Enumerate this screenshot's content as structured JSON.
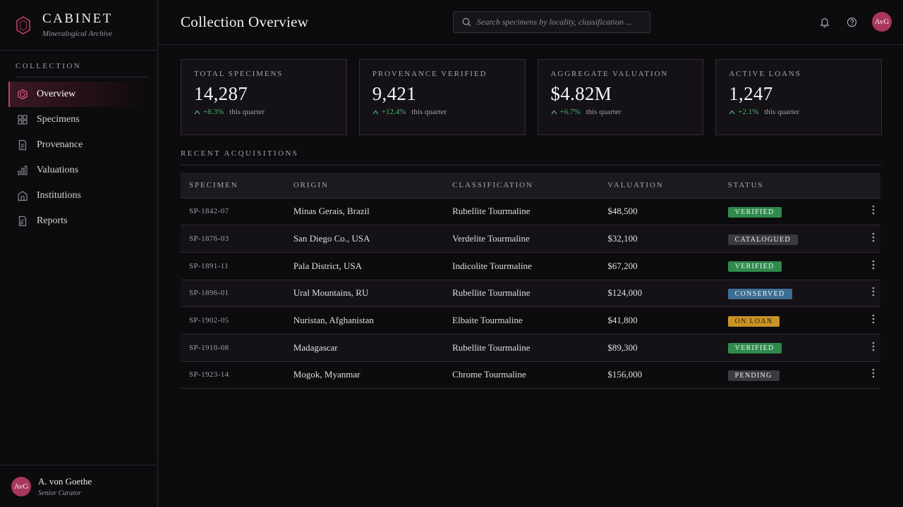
{
  "brand": {
    "title": "CABINET",
    "subtitle": "Mineralogical Archive"
  },
  "sidebar": {
    "section": "COLLECTION",
    "items": [
      {
        "label": "Overview",
        "icon": "hexagon-icon"
      },
      {
        "label": "Specimens",
        "icon": "grid-icon"
      },
      {
        "label": "Provenance",
        "icon": "document-icon"
      },
      {
        "label": "Valuations",
        "icon": "bar-chart-icon"
      },
      {
        "label": "Institutions",
        "icon": "building-icon"
      },
      {
        "label": "Reports",
        "icon": "report-icon"
      }
    ]
  },
  "user": {
    "initials": "AvG",
    "name": "A. von Goethe",
    "role": "Senior Curator"
  },
  "header": {
    "title": "Collection Overview",
    "search_placeholder": "Search specimens by locality, classification ...",
    "avatar_initials": "AvG"
  },
  "stats": [
    {
      "label": "TOTAL SPECIMENS",
      "value": "14,287",
      "delta": "+8.3%",
      "note": "this quarter"
    },
    {
      "label": "PROVENANCE VERIFIED",
      "value": "9,421",
      "delta": "+12.4%",
      "note": "this quarter"
    },
    {
      "label": "AGGREGATE VALUATION",
      "value": "$4.82M",
      "delta": "+6.7%",
      "note": "this quarter"
    },
    {
      "label": "ACTIVE LOANS",
      "value": "1,247",
      "delta": "+2.1%",
      "note": "this quarter"
    }
  ],
  "recent": {
    "title": "RECENT ACQUISITIONS",
    "columns": [
      "SPECIMEN",
      "ORIGIN",
      "CLASSIFICATION",
      "VALUATION",
      "STATUS"
    ],
    "rows": [
      {
        "id": "SP-1842-07",
        "origin": "Minas Gerais, Brazil",
        "class": "Rubellite Tourmaline",
        "value": "$48,500",
        "status": "VERIFIED"
      },
      {
        "id": "SP-1876-03",
        "origin": "San Diego Co., USA",
        "class": "Verdelite Tourmaline",
        "value": "$32,100",
        "status": "CATALOGUED"
      },
      {
        "id": "SP-1891-11",
        "origin": "Pala District, USA",
        "class": "Indicolite Tourmaline",
        "value": "$67,200",
        "status": "VERIFIED"
      },
      {
        "id": "SP-1896-01",
        "origin": "Ural Mountains, RU",
        "class": "Rubellite Tourmaline",
        "value": "$124,000",
        "status": "CONSERVED"
      },
      {
        "id": "SP-1902-05",
        "origin": "Nuristan, Afghanistan",
        "class": "Elbaite Tourmaline",
        "value": "$41,800",
        "status": "ON LOAN"
      },
      {
        "id": "SP-1910-08",
        "origin": "Madagascar",
        "class": "Rubellite Tourmaline",
        "value": "$89,300",
        "status": "VERIFIED"
      },
      {
        "id": "SP-1923-14",
        "origin": "Mogok, Myanmar",
        "class": "Chrome Tourmaline",
        "value": "$156,000",
        "status": "PENDING"
      }
    ]
  },
  "status_colors": {
    "VERIFIED": "#2f8a4c",
    "CATALOGUED": "#3c3940",
    "CONSERVED": "#3d6d94",
    "ON LOAN": "#c99327",
    "PENDING": "#3c3940"
  },
  "colors": {
    "accent": "#c0416d",
    "positive": "#4fb16f"
  }
}
